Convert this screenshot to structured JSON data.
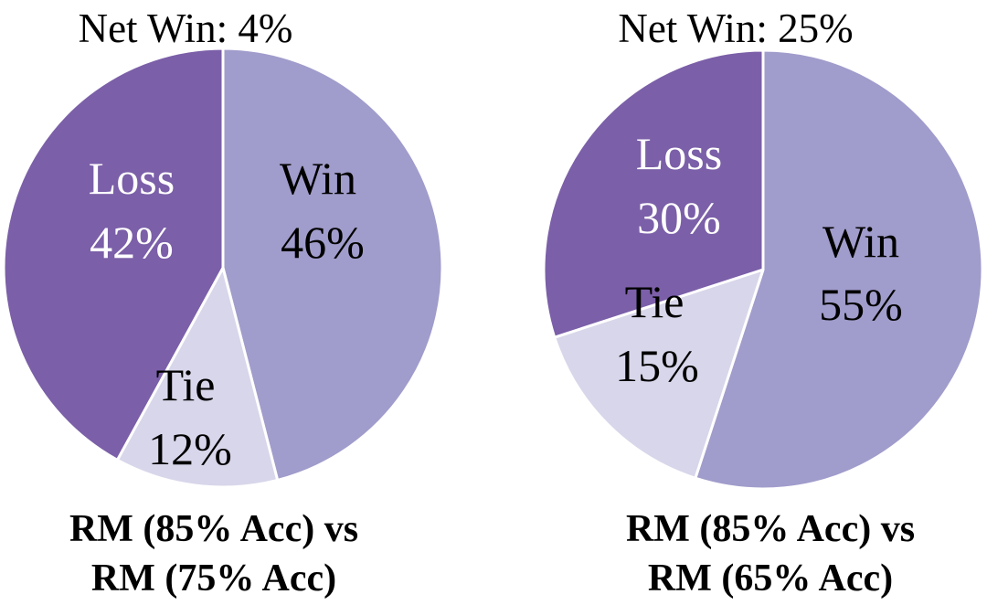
{
  "colors": {
    "win": "#a09ccb",
    "loss": "#7b5fa8",
    "tie": "#d8d6ea",
    "label_light": "#ffffff",
    "label_dark": "#000000",
    "stroke": "#ffffff"
  },
  "chart_data": [
    {
      "type": "pie",
      "title": "Net Win: 4%",
      "caption_lines": [
        "RM (85% Acc) vs",
        "RM (75% Acc)"
      ],
      "slices": [
        {
          "name": "Win",
          "value": 46,
          "label": "46%",
          "color": "#a09ccb",
          "label_color": "#000000"
        },
        {
          "name": "Tie",
          "value": 12,
          "label": "12%",
          "color": "#d8d6ea",
          "label_color": "#000000"
        },
        {
          "name": "Loss",
          "value": 42,
          "label": "42%",
          "color": "#7b5fa8",
          "label_color": "#ffffff"
        }
      ]
    },
    {
      "type": "pie",
      "title": "Net Win: 25%",
      "caption_lines": [
        "RM (85% Acc) vs",
        "RM (65% Acc)"
      ],
      "slices": [
        {
          "name": "Win",
          "value": 55,
          "label": "55%",
          "color": "#a09ccb",
          "label_color": "#000000"
        },
        {
          "name": "Tie",
          "value": 15,
          "label": "15%",
          "color": "#d8d6ea",
          "label_color": "#000000"
        },
        {
          "name": "Loss",
          "value": 30,
          "label": "30%",
          "color": "#7b5fa8",
          "label_color": "#ffffff"
        }
      ]
    }
  ]
}
